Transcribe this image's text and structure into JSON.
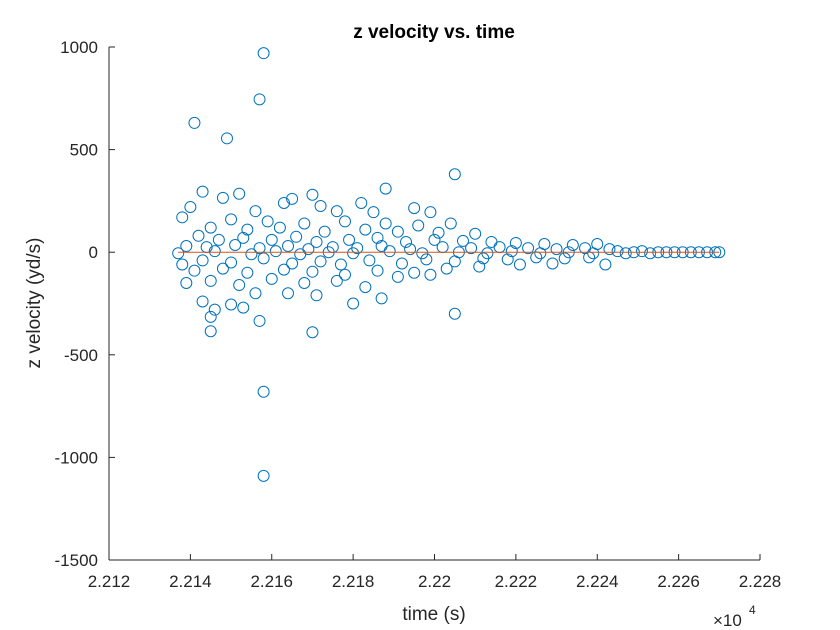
{
  "chart_data": {
    "type": "scatter",
    "title": "z velocity vs. time",
    "xlabel": "time (s)",
    "ylabel": "z velocity (yd/s)",
    "x_exponent_multiplier": "×10",
    "x_exponent_power": "4",
    "xlim": [
      2.212,
      2.228
    ],
    "ylim": [
      -1500,
      1000
    ],
    "x_ticks": [
      2.212,
      2.214,
      2.216,
      2.218,
      2.22,
      2.222,
      2.224,
      2.226,
      2.228
    ],
    "x_tick_labels": [
      "2.212",
      "2.214",
      "2.216",
      "2.218",
      "2.22",
      "2.222",
      "2.224",
      "2.226",
      "2.228"
    ],
    "y_ticks": [
      -1500,
      -1000,
      -500,
      0,
      500,
      1000
    ],
    "y_tick_labels": [
      "-1500",
      "-1000",
      "-500",
      "0",
      "500",
      "1000"
    ],
    "grid": false,
    "marker": "open-circle",
    "colors": {
      "marker": "#0072BD",
      "fit_line": "#D95319",
      "axis": "#262626"
    },
    "fit_line": {
      "x": [
        2.2137,
        2.227
      ],
      "y": [
        0,
        0
      ]
    },
    "series": [
      {
        "values": [
          {
            "x": 2.2158,
            "y": 970
          },
          {
            "x": 2.2157,
            "y": 745
          },
          {
            "x": 2.2141,
            "y": 630
          },
          {
            "x": 2.2149,
            "y": 555
          },
          {
            "x": 2.2205,
            "y": 380
          },
          {
            "x": 2.2188,
            "y": 310
          },
          {
            "x": 2.2143,
            "y": 295
          },
          {
            "x": 2.2152,
            "y": 285
          },
          {
            "x": 2.217,
            "y": 280
          },
          {
            "x": 2.2165,
            "y": 260
          },
          {
            "x": 2.2148,
            "y": 265
          },
          {
            "x": 2.2163,
            "y": 240
          },
          {
            "x": 2.2182,
            "y": 240
          },
          {
            "x": 2.2195,
            "y": 215
          },
          {
            "x": 2.214,
            "y": 220
          },
          {
            "x": 2.2172,
            "y": 225
          },
          {
            "x": 2.2156,
            "y": 200
          },
          {
            "x": 2.2176,
            "y": 200
          },
          {
            "x": 2.2185,
            "y": 195
          },
          {
            "x": 2.2199,
            "y": 195
          },
          {
            "x": 2.2138,
            "y": 170
          },
          {
            "x": 2.215,
            "y": 160
          },
          {
            "x": 2.2159,
            "y": 150
          },
          {
            "x": 2.2168,
            "y": 140
          },
          {
            "x": 2.2178,
            "y": 150
          },
          {
            "x": 2.2188,
            "y": 140
          },
          {
            "x": 2.2196,
            "y": 130
          },
          {
            "x": 2.2204,
            "y": 140
          },
          {
            "x": 2.2145,
            "y": 120
          },
          {
            "x": 2.2154,
            "y": 110
          },
          {
            "x": 2.2162,
            "y": 120
          },
          {
            "x": 2.2173,
            "y": 100
          },
          {
            "x": 2.2183,
            "y": 110
          },
          {
            "x": 2.2191,
            "y": 100
          },
          {
            "x": 2.2201,
            "y": 95
          },
          {
            "x": 2.221,
            "y": 90
          },
          {
            "x": 2.2142,
            "y": 80
          },
          {
            "x": 2.2147,
            "y": 60
          },
          {
            "x": 2.2153,
            "y": 70
          },
          {
            "x": 2.216,
            "y": 60
          },
          {
            "x": 2.2166,
            "y": 75
          },
          {
            "x": 2.2171,
            "y": 50
          },
          {
            "x": 2.2179,
            "y": 60
          },
          {
            "x": 2.2186,
            "y": 70
          },
          {
            "x": 2.2193,
            "y": 50
          },
          {
            "x": 2.22,
            "y": 60
          },
          {
            "x": 2.2207,
            "y": 55
          },
          {
            "x": 2.2214,
            "y": 50
          },
          {
            "x": 2.222,
            "y": 45
          },
          {
            "x": 2.2227,
            "y": 40
          },
          {
            "x": 2.2234,
            "y": 35
          },
          {
            "x": 2.224,
            "y": 40
          },
          {
            "x": 2.2139,
            "y": 30
          },
          {
            "x": 2.2144,
            "y": 25
          },
          {
            "x": 2.2151,
            "y": 35
          },
          {
            "x": 2.2157,
            "y": 20
          },
          {
            "x": 2.2164,
            "y": 30
          },
          {
            "x": 2.2169,
            "y": 15
          },
          {
            "x": 2.2175,
            "y": 25
          },
          {
            "x": 2.2181,
            "y": 20
          },
          {
            "x": 2.2187,
            "y": 30
          },
          {
            "x": 2.2194,
            "y": 15
          },
          {
            "x": 2.2202,
            "y": 25
          },
          {
            "x": 2.2209,
            "y": 20
          },
          {
            "x": 2.2216,
            "y": 25
          },
          {
            "x": 2.2223,
            "y": 20
          },
          {
            "x": 2.223,
            "y": 15
          },
          {
            "x": 2.2237,
            "y": 20
          },
          {
            "x": 2.2243,
            "y": 15
          },
          {
            "x": 2.2137,
            "y": -5
          },
          {
            "x": 2.2146,
            "y": 5
          },
          {
            "x": 2.2155,
            "y": -10
          },
          {
            "x": 2.2161,
            "y": 5
          },
          {
            "x": 2.2167,
            "y": -10
          },
          {
            "x": 2.2174,
            "y": 0
          },
          {
            "x": 2.218,
            "y": -5
          },
          {
            "x": 2.2189,
            "y": 5
          },
          {
            "x": 2.2197,
            "y": -5
          },
          {
            "x": 2.2206,
            "y": 0
          },
          {
            "x": 2.2213,
            "y": -5
          },
          {
            "x": 2.2219,
            "y": 5
          },
          {
            "x": 2.2226,
            "y": -5
          },
          {
            "x": 2.2233,
            "y": 0
          },
          {
            "x": 2.2239,
            "y": -5
          },
          {
            "x": 2.2138,
            "y": -60
          },
          {
            "x": 2.2143,
            "y": -40
          },
          {
            "x": 2.215,
            "y": -50
          },
          {
            "x": 2.2158,
            "y": -30
          },
          {
            "x": 2.2165,
            "y": -55
          },
          {
            "x": 2.2172,
            "y": -45
          },
          {
            "x": 2.2177,
            "y": -60
          },
          {
            "x": 2.2184,
            "y": -40
          },
          {
            "x": 2.2192,
            "y": -55
          },
          {
            "x": 2.2198,
            "y": -35
          },
          {
            "x": 2.2205,
            "y": -45
          },
          {
            "x": 2.2212,
            "y": -30
          },
          {
            "x": 2.2218,
            "y": -35
          },
          {
            "x": 2.2225,
            "y": -25
          },
          {
            "x": 2.2232,
            "y": -30
          },
          {
            "x": 2.2238,
            "y": -25
          },
          {
            "x": 2.2141,
            "y": -90
          },
          {
            "x": 2.2148,
            "y": -80
          },
          {
            "x": 2.2154,
            "y": -100
          },
          {
            "x": 2.2163,
            "y": -85
          },
          {
            "x": 2.217,
            "y": -95
          },
          {
            "x": 2.2178,
            "y": -110
          },
          {
            "x": 2.2186,
            "y": -90
          },
          {
            "x": 2.2195,
            "y": -100
          },
          {
            "x": 2.2203,
            "y": -80
          },
          {
            "x": 2.2211,
            "y": -70
          },
          {
            "x": 2.2221,
            "y": -60
          },
          {
            "x": 2.2229,
            "y": -55
          },
          {
            "x": 2.2242,
            "y": -60
          },
          {
            "x": 2.2139,
            "y": -150
          },
          {
            "x": 2.2145,
            "y": -140
          },
          {
            "x": 2.2152,
            "y": -160
          },
          {
            "x": 2.216,
            "y": -130
          },
          {
            "x": 2.2168,
            "y": -150
          },
          {
            "x": 2.2176,
            "y": -140
          },
          {
            "x": 2.2183,
            "y": -170
          },
          {
            "x": 2.2191,
            "y": -120
          },
          {
            "x": 2.2199,
            "y": -110
          },
          {
            "x": 2.2143,
            "y": -240
          },
          {
            "x": 2.215,
            "y": -255
          },
          {
            "x": 2.2156,
            "y": -200
          },
          {
            "x": 2.2164,
            "y": -200
          },
          {
            "x": 2.2171,
            "y": -210
          },
          {
            "x": 2.218,
            "y": -250
          },
          {
            "x": 2.2187,
            "y": -225
          },
          {
            "x": 2.2146,
            "y": -280
          },
          {
            "x": 2.2153,
            "y": -270
          },
          {
            "x": 2.2145,
            "y": -315
          },
          {
            "x": 2.2157,
            "y": -335
          },
          {
            "x": 2.2205,
            "y": -300
          },
          {
            "x": 2.2145,
            "y": -385
          },
          {
            "x": 2.217,
            "y": -390
          },
          {
            "x": 2.2158,
            "y": -680
          },
          {
            "x": 2.2158,
            "y": -1090
          },
          {
            "x": 2.2245,
            "y": 5
          },
          {
            "x": 2.2247,
            "y": -5
          },
          {
            "x": 2.2249,
            "y": 0
          },
          {
            "x": 2.2251,
            "y": 5
          },
          {
            "x": 2.2253,
            "y": -5
          },
          {
            "x": 2.2255,
            "y": 0
          },
          {
            "x": 2.2257,
            "y": 0
          },
          {
            "x": 2.2259,
            "y": 0
          },
          {
            "x": 2.2261,
            "y": 0
          },
          {
            "x": 2.2263,
            "y": 0
          },
          {
            "x": 2.2265,
            "y": 0
          },
          {
            "x": 2.2267,
            "y": 0
          },
          {
            "x": 2.2269,
            "y": 0
          },
          {
            "x": 2.227,
            "y": 0
          }
        ]
      }
    ]
  }
}
